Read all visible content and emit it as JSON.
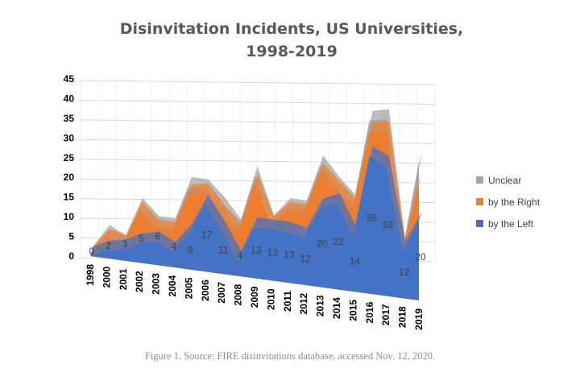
{
  "chart_data": {
    "type": "area",
    "stacked": true,
    "title_lines": [
      "Disinvitation Incidents, US Universities,",
      "1998-2019"
    ],
    "categories": [
      "1998",
      "2000",
      "2001",
      "2002",
      "2003",
      "2004",
      "2005",
      "2006",
      "2007",
      "2008",
      "2009",
      "2010",
      "2011",
      "2012",
      "2013",
      "2014",
      "2015",
      "2016",
      "2017",
      "2018",
      "2019"
    ],
    "series": [
      {
        "name": "by the Left",
        "color": "#4472c4",
        "values": [
          0,
          2,
          3,
          5,
          6,
          4,
          9,
          17,
          11,
          4,
          13,
          13,
          13,
          12,
          20,
          22,
          14,
          35,
          33,
          12,
          20
        ]
      },
      {
        "name": "by the Right",
        "color": "#ed7d31",
        "values": [
          0,
          3,
          1,
          8,
          3,
          5,
          10,
          3,
          4,
          7,
          11,
          1,
          5,
          6,
          9,
          3,
          7,
          6,
          9,
          0,
          10
        ]
      },
      {
        "name": "Unclear",
        "color": "#a5a5a5",
        "values": [
          0,
          1,
          0,
          1,
          1,
          1,
          2,
          1,
          2,
          1,
          2,
          0,
          1,
          1,
          2,
          1,
          1,
          3,
          3,
          0,
          5
        ]
      }
    ],
    "data_labels": [
      "0",
      "2",
      "3",
      "5",
      "6",
      "4",
      "9",
      "17",
      "11",
      "4",
      "13",
      "13",
      "13",
      "12",
      "20",
      "22",
      "14",
      "35",
      "33",
      "12",
      "20"
    ],
    "y_ticks": [
      "0",
      "5",
      "10",
      "15",
      "20",
      "25",
      "30",
      "35",
      "40",
      "45"
    ],
    "ylim": [
      0,
      45
    ],
    "legend": [
      "Unclear",
      "by the Right",
      "by the Left"
    ],
    "legend_position": "right"
  },
  "caption": "Figure 1. Source: FIRE disinvitations database, accessed Nov. 12, 2020."
}
